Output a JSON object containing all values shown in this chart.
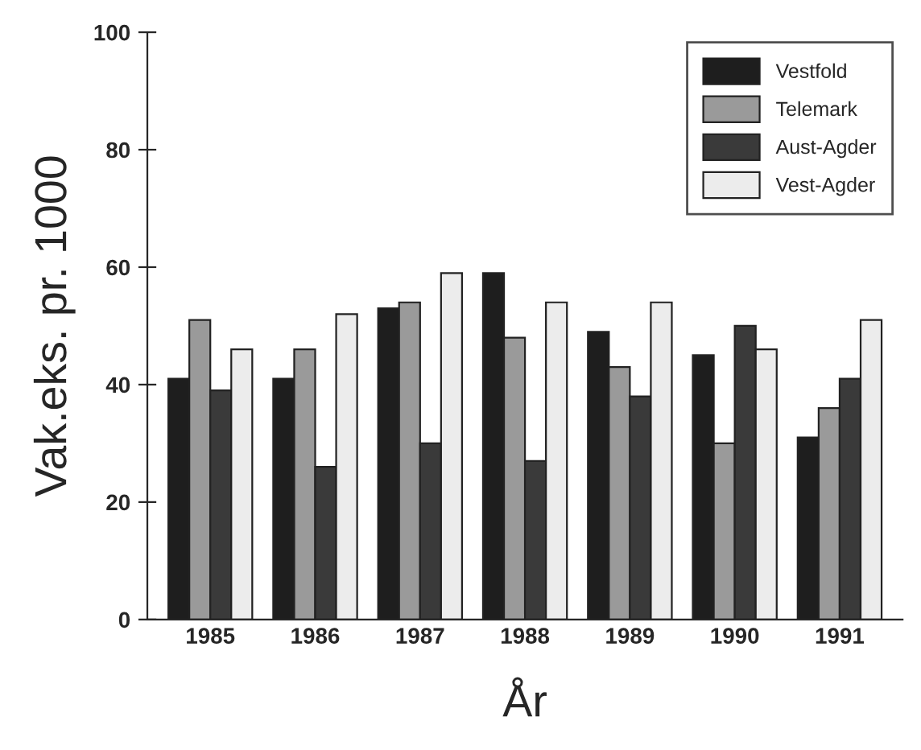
{
  "chart_data": {
    "type": "bar",
    "xlabel": "År",
    "ylabel": "Vak.eks. pr. 1000",
    "categories": [
      "1985",
      "1986",
      "1987",
      "1988",
      "1989",
      "1990",
      "1991"
    ],
    "series": [
      {
        "name": "Vestfold",
        "color": "#1e1e1e",
        "values": [
          41,
          41,
          53,
          59,
          49,
          45,
          31
        ]
      },
      {
        "name": "Telemark",
        "color": "#9a9a9a",
        "values": [
          51,
          46,
          54,
          48,
          43,
          30,
          36
        ]
      },
      {
        "name": "Aust-Agder",
        "color": "#3a3a3a",
        "values": [
          39,
          26,
          30,
          27,
          38,
          50,
          41
        ]
      },
      {
        "name": "Vest-Agder",
        "color": "#ececec",
        "values": [
          46,
          52,
          59,
          54,
          54,
          46,
          51
        ]
      }
    ],
    "ylim": [
      0,
      100
    ],
    "yticks": [
      0,
      20,
      40,
      60,
      80,
      100
    ],
    "grid": false,
    "legend": "top right"
  }
}
